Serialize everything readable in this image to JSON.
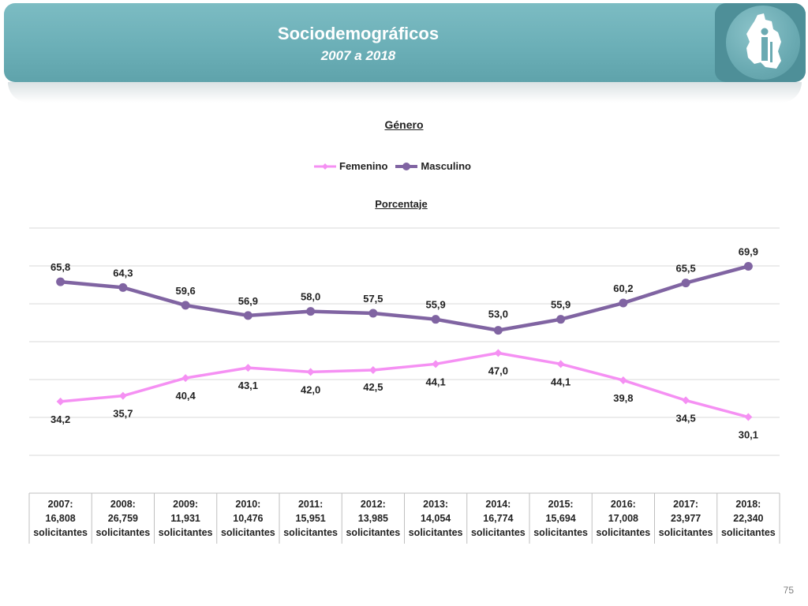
{
  "header": {
    "title": "Sociodemográficos",
    "subtitle": "2007 a 2018"
  },
  "footer": {
    "page_number": "75"
  },
  "colors": {
    "banner": "#6fb3ba",
    "femenino": "#f590f3",
    "masculino": "#8064a2"
  },
  "chart_data": {
    "type": "line",
    "title": "Género",
    "ylabel": "Porcentaje",
    "xlabel": "",
    "legend_position": "top-center",
    "grid": true,
    "ylim": [
      10,
      80
    ],
    "categories": [
      [
        "2007:",
        "16,808",
        "solicitantes"
      ],
      [
        "2008:",
        "26,759",
        "solicitantes"
      ],
      [
        "2009:",
        "11,931",
        "solicitantes"
      ],
      [
        "2010:",
        "10,476",
        "solicitantes"
      ],
      [
        "2011:",
        "15,951",
        "solicitantes"
      ],
      [
        "2012:",
        "13,985",
        "solicitantes"
      ],
      [
        "2013:",
        "14,054",
        "solicitantes"
      ],
      [
        "2014:",
        "16,774",
        "solicitantes"
      ],
      [
        "2015:",
        "15,694",
        "solicitantes"
      ],
      [
        "2016:",
        "17,008",
        "solicitantes"
      ],
      [
        "2017:",
        "23,977",
        "solicitantes"
      ],
      [
        "2018:",
        "22,340",
        "solicitantes"
      ]
    ],
    "series": [
      {
        "name": "Femenino",
        "color": "#f590f3",
        "marker": "diamond",
        "values": [
          34.2,
          35.7,
          40.4,
          43.1,
          42.0,
          42.5,
          44.1,
          47.0,
          44.1,
          39.8,
          34.5,
          30.1
        ],
        "labels": [
          "34,2",
          "35,7",
          "40,4",
          "43,1",
          "42,0",
          "42,5",
          "44,1",
          "47,0",
          "44,1",
          "39,8",
          "34,5",
          "30,1"
        ]
      },
      {
        "name": "Masculino",
        "color": "#8064a2",
        "marker": "circle",
        "values": [
          65.8,
          64.3,
          59.6,
          56.9,
          58.0,
          57.5,
          55.9,
          53.0,
          55.9,
          60.2,
          65.5,
          69.9
        ],
        "labels": [
          "65,8",
          "64,3",
          "59,6",
          "56,9",
          "58,0",
          "57,5",
          "55,9",
          "53,0",
          "55,9",
          "60,2",
          "65,5",
          "69,9"
        ]
      }
    ]
  }
}
